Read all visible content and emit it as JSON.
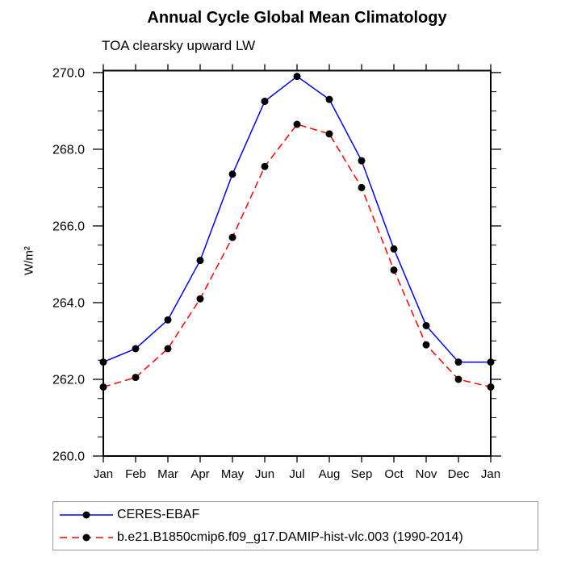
{
  "header": {
    "title": "Annual Cycle Global Mean Climatology",
    "subtitle": "TOA clearsky upward LW"
  },
  "chart_data": {
    "type": "line",
    "title": "Annual Cycle Global Mean Climatology",
    "subtitle": "TOA clearsky upward LW",
    "xlabel": "",
    "ylabel": "W/m²",
    "categories": [
      "Jan",
      "Feb",
      "Mar",
      "Apr",
      "May",
      "Jun",
      "Jul",
      "Aug",
      "Sep",
      "Oct",
      "Nov",
      "Dec",
      "Jan"
    ],
    "ylim": [
      260.0,
      270.05
    ],
    "y_major_ticks": [
      260.0,
      262.0,
      264.0,
      266.0,
      268.0,
      270.0
    ],
    "y_tick_labels": [
      "260.0",
      "262.0",
      "264.0",
      "266.0",
      "268.0",
      "270.0"
    ],
    "y_minor_step": 0.5,
    "grid": false,
    "legend_position": "bottom",
    "axis_color": "#000000",
    "marker_color": "#000000",
    "series": [
      {
        "name": "CERES-EBAF",
        "color": "#0000ff",
        "style": "solid",
        "marker": "circle",
        "values": [
          262.45,
          262.8,
          263.55,
          265.1,
          267.35,
          269.25,
          269.9,
          269.3,
          267.7,
          265.4,
          263.4,
          262.45,
          262.45
        ]
      },
      {
        "name": "b.e21.B1850cmip6.f09_g17.DAMIP-hist-vlc.003 (1990-2014)",
        "color": "#ff0000",
        "style": "dashed",
        "marker": "circle",
        "values": [
          261.8,
          262.05,
          262.8,
          264.1,
          265.7,
          267.55,
          268.65,
          268.4,
          267.0,
          264.85,
          262.9,
          262.0,
          261.8
        ]
      }
    ]
  }
}
